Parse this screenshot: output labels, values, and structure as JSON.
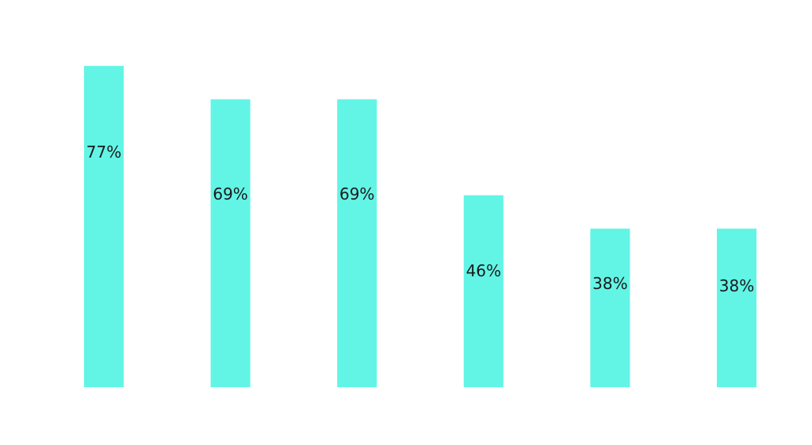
{
  "chart_data": {
    "type": "bar",
    "title": "",
    "xlabel": "",
    "ylabel": "",
    "categories": [
      "",
      "",
      "",
      "",
      "",
      ""
    ],
    "values": [
      77,
      69,
      69,
      46,
      38,
      38
    ],
    "value_labels": [
      "77%",
      "69%",
      "69%",
      "46%",
      "38%",
      "38%"
    ],
    "ylim": [
      0,
      100
    ],
    "grid": false,
    "legend": "none",
    "bar_color": "#62F5E6",
    "label_color": "#1A1A1A"
  }
}
